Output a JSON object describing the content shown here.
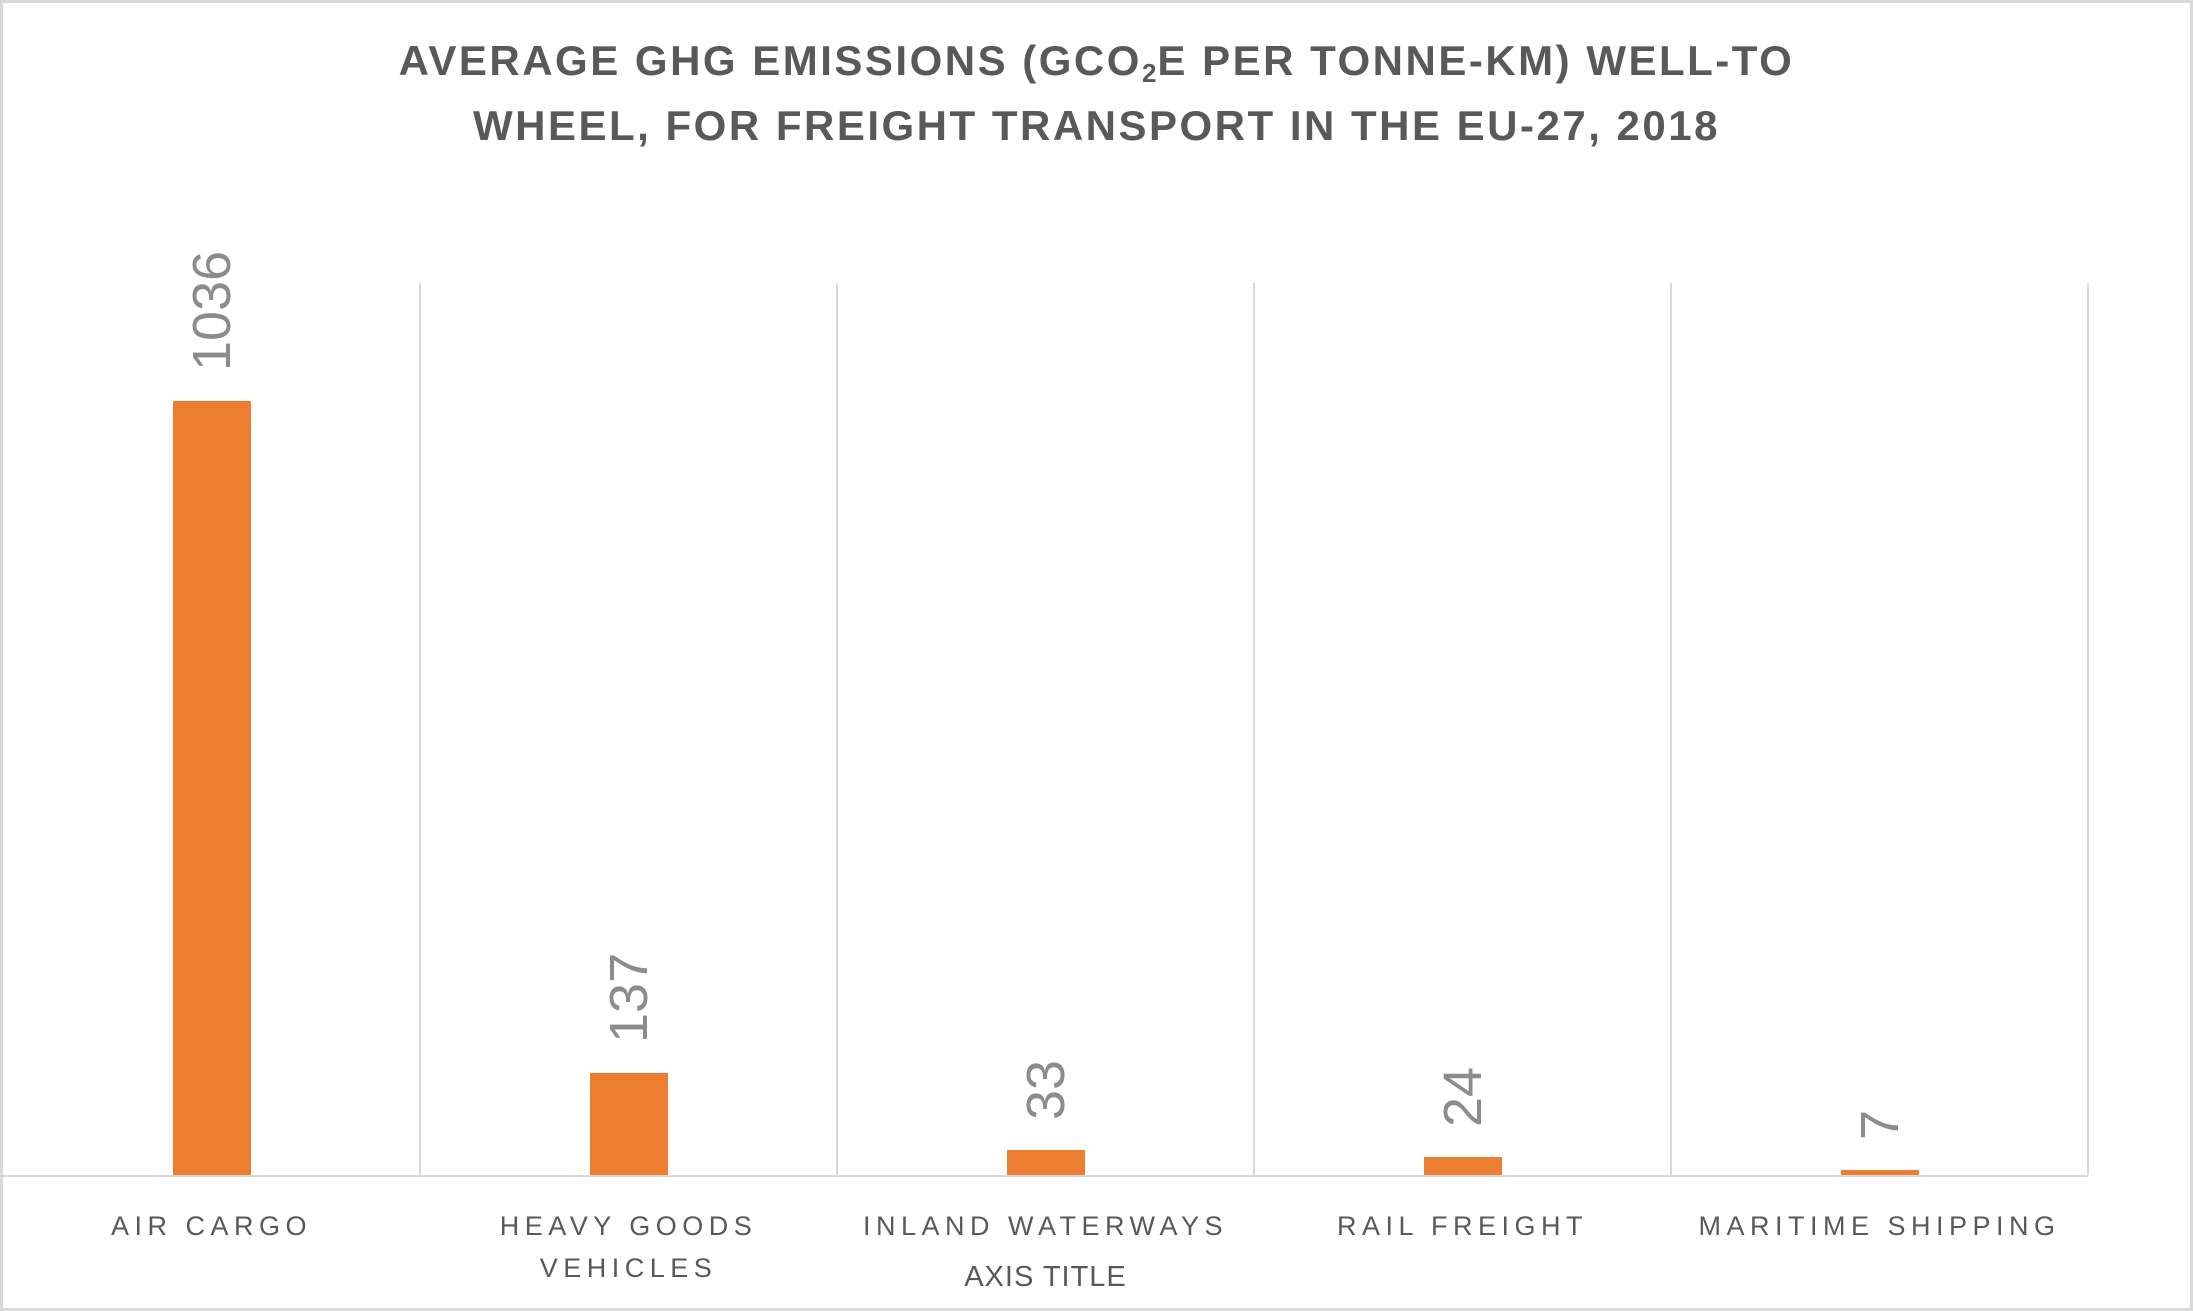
{
  "chart_data": {
    "type": "bar",
    "title": "AVERAGE GHG EMISSIONS (GCO₂E PER TONNE-KM) WELL-TO WHEEL, FOR FREIGHT TRANSPORT IN THE EU-27, 2018",
    "title_parts": {
      "line1_pre": "AVERAGE GHG EMISSIONS (GCO",
      "line1_sub": "2",
      "line1_post": "E PER TONNE-KM) WELL-TO",
      "line2": "WHEEL, FOR FREIGHT TRANSPORT IN THE EU-27, 2018"
    },
    "categories": [
      "AIR CARGO",
      "HEAVY GOODS VEHICLES",
      "INLAND WATERWAYS",
      "RAIL FREIGHT",
      "MARITIME SHIPPING"
    ],
    "values": [
      1036,
      137,
      33,
      24,
      7
    ],
    "xlabel": "AXIS TITLE",
    "ylabel": "",
    "ylim": [
      0,
      1200
    ],
    "grid": "vertical category separators only, no horizontal gridlines",
    "legend": "none",
    "data_label_rotation_deg": -90,
    "colors": {
      "bar": "#ED7D31",
      "gridline": "#D9D9D9",
      "axis_line": "#D9D9D9",
      "title_text": "#595959",
      "category_text": "#595959",
      "data_label_text": "#8C8C8C",
      "axis_title_text": "#595959",
      "background": "#FFFFFF",
      "frame_border": "#D9D9D9"
    }
  }
}
